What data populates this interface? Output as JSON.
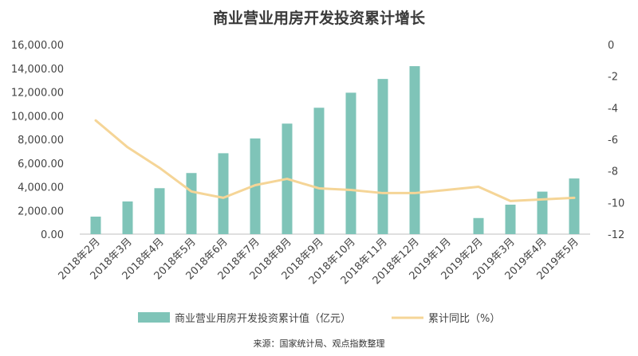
{
  "chart_data": {
    "type": "bar",
    "title": "商业营业用房开发投资累计增长",
    "source": "来源：国家统计局、观点指数整理",
    "categories": [
      "2018年2月",
      "2018年3月",
      "2018年4月",
      "2018年5月",
      "2018年6月",
      "2018年7月",
      "2018年8月",
      "2018年9月",
      "2018年10月",
      "2018年11月",
      "2018年12月",
      "2019年1月",
      "2019年2月",
      "2019年3月",
      "2019年4月",
      "2019年5月"
    ],
    "series": [
      {
        "name": "商业营业用房开发投资累计值（亿元）",
        "kind": "bar",
        "axis": "left",
        "color": "#7fc4b8",
        "values": [
          1480,
          2760,
          3880,
          5160,
          6830,
          8080,
          9330,
          10670,
          11940,
          13100,
          14180,
          null,
          1360,
          2490,
          3590,
          4700
        ]
      },
      {
        "name": "累计同比（%）",
        "kind": "line",
        "axis": "right",
        "color": "#f5d597",
        "values": [
          -4.8,
          -6.5,
          -7.8,
          -9.3,
          -9.7,
          -8.9,
          -8.5,
          -9.1,
          -9.2,
          -9.4,
          -9.4,
          -9.2,
          -9.0,
          -9.9,
          -9.8,
          -9.7
        ]
      }
    ],
    "y_left": {
      "min": 0,
      "max": 16000,
      "ticks": [
        "0.00",
        "2,000.00",
        "4,000.00",
        "6,000.00",
        "8,000.00",
        "10,000.00",
        "12,000.00",
        "14,000.00",
        "16,000.00"
      ]
    },
    "y_right": {
      "min": -12,
      "max": 0,
      "ticks": [
        "-12",
        "-10",
        "-8",
        "-6",
        "-4",
        "-2",
        "0"
      ]
    },
    "grid": false,
    "legend_position": "bottom"
  }
}
